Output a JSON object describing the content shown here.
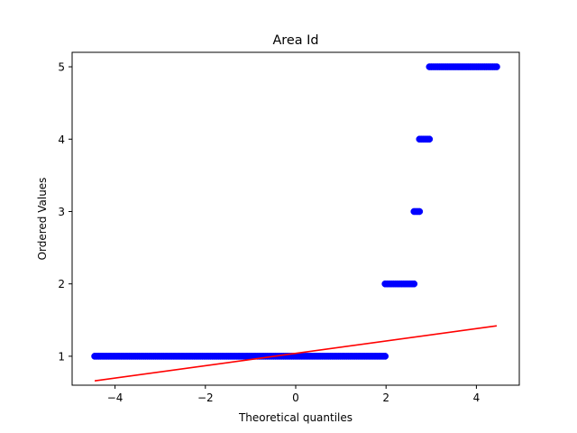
{
  "chart_data": {
    "type": "scatter",
    "title": "Area Id",
    "xlabel": "Theoretical quantiles",
    "ylabel": "Ordered Values",
    "xlim": [
      -4.95,
      4.95
    ],
    "ylim": [
      0.6,
      5.2
    ],
    "x_ticks": [
      -4,
      -2,
      0,
      2,
      4
    ],
    "x_tick_labels": [
      "−4",
      "−2",
      "0",
      "2",
      "4"
    ],
    "y_ticks": [
      1,
      2,
      3,
      4,
      5
    ],
    "y_tick_labels": [
      "1",
      "2",
      "3",
      "4",
      "5"
    ],
    "grid": false,
    "series": [
      {
        "kind": "points",
        "color": "#0000ff",
        "segments": [
          {
            "y": 1,
            "x_start": -4.45,
            "x_end": 1.98
          },
          {
            "y": 2,
            "x_start": 1.98,
            "x_end": 2.62
          },
          {
            "y": 3,
            "x_start": 2.62,
            "x_end": 2.74
          },
          {
            "y": 4,
            "x_start": 2.74,
            "x_end": 2.96
          },
          {
            "y": 5,
            "x_start": 2.96,
            "x_end": 4.45
          }
        ]
      },
      {
        "kind": "fit-line",
        "color": "#ff0000",
        "x": [
          -4.45,
          4.45
        ],
        "y": [
          0.66,
          1.42
        ]
      }
    ]
  }
}
